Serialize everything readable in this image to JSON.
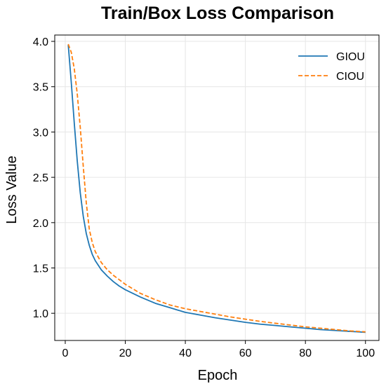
{
  "chart_data": {
    "type": "line",
    "title": "Train/Box Loss Comparison",
    "xlabel": "Epoch",
    "ylabel": "Loss Value",
    "xlim": [
      -3.5,
      104.5
    ],
    "ylim": [
      0.7,
      4.07
    ],
    "xticks": [
      0,
      20,
      40,
      60,
      80,
      100
    ],
    "yticks": [
      1.0,
      1.5,
      2.0,
      2.5,
      3.0,
      3.5,
      4.0
    ],
    "xtick_labels": [
      "0",
      "20",
      "40",
      "60",
      "80",
      "100"
    ],
    "ytick_labels": [
      "1.0",
      "1.5",
      "2.0",
      "2.5",
      "3.0",
      "3.5",
      "4.0"
    ],
    "grid": true,
    "legend_position": "top-right",
    "series": [
      {
        "name": "GIOU",
        "color": "#1f77b4",
        "style": "solid",
        "x": [
          1,
          2,
          3,
          4,
          5,
          6,
          7,
          8,
          9,
          10,
          12,
          14,
          16,
          18,
          20,
          25,
          30,
          35,
          40,
          45,
          50,
          55,
          60,
          65,
          70,
          75,
          80,
          85,
          90,
          95,
          100
        ],
        "y": [
          3.96,
          3.55,
          3.1,
          2.68,
          2.33,
          2.07,
          1.88,
          1.75,
          1.65,
          1.58,
          1.48,
          1.41,
          1.35,
          1.3,
          1.26,
          1.18,
          1.11,
          1.06,
          1.01,
          0.98,
          0.95,
          0.925,
          0.9,
          0.88,
          0.865,
          0.85,
          0.835,
          0.82,
          0.81,
          0.8,
          0.79
        ]
      },
      {
        "name": "CIOU",
        "color": "#ff7f0e",
        "style": "dashed",
        "x": [
          1,
          2,
          3,
          4,
          5,
          6,
          7,
          8,
          9,
          10,
          12,
          14,
          16,
          18,
          20,
          25,
          30,
          35,
          40,
          45,
          50,
          55,
          60,
          65,
          70,
          75,
          80,
          85,
          90,
          95,
          100
        ],
        "y": [
          3.97,
          3.88,
          3.7,
          3.42,
          3.05,
          2.62,
          2.22,
          1.93,
          1.78,
          1.68,
          1.56,
          1.48,
          1.42,
          1.37,
          1.32,
          1.22,
          1.15,
          1.09,
          1.05,
          1.02,
          0.99,
          0.96,
          0.935,
          0.91,
          0.89,
          0.87,
          0.85,
          0.835,
          0.82,
          0.805,
          0.795
        ]
      }
    ]
  }
}
